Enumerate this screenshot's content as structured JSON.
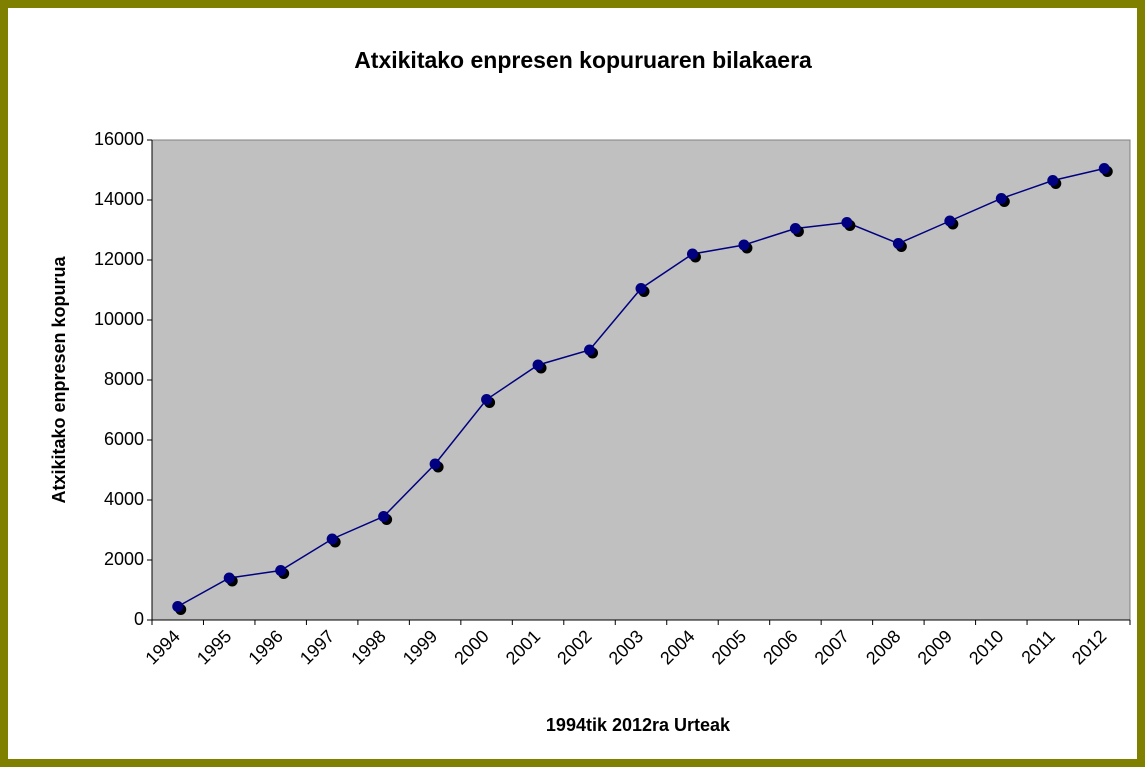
{
  "chart_data": {
    "type": "line",
    "title": "Atxikitako enpresen kopuruaren bilakaera",
    "x_label": "1994tik 2012ra Urteak",
    "y_label": "Atxikitako enpresen kopurua",
    "categories": [
      "1994",
      "1995",
      "1996",
      "1997",
      "1998",
      "1999",
      "2000",
      "2001",
      "2002",
      "2003",
      "2004",
      "2005",
      "2006",
      "2007",
      "2008",
      "2009",
      "2010",
      "2011",
      "2012"
    ],
    "series": [
      {
        "name": "Atxikitako enpresen kopurua",
        "color": "#000080",
        "values": [
          450,
          1400,
          1650,
          2700,
          3450,
          5200,
          7350,
          8500,
          9000,
          11050,
          12200,
          12500,
          13050,
          13250,
          12550,
          13300,
          14050,
          14650,
          15050
        ]
      }
    ],
    "ylim": [
      0,
      16000
    ],
    "yticks": [
      0,
      2000,
      4000,
      6000,
      8000,
      10000,
      12000,
      14000,
      16000
    ],
    "plot_background": "#c0c0c0",
    "grid": false
  }
}
